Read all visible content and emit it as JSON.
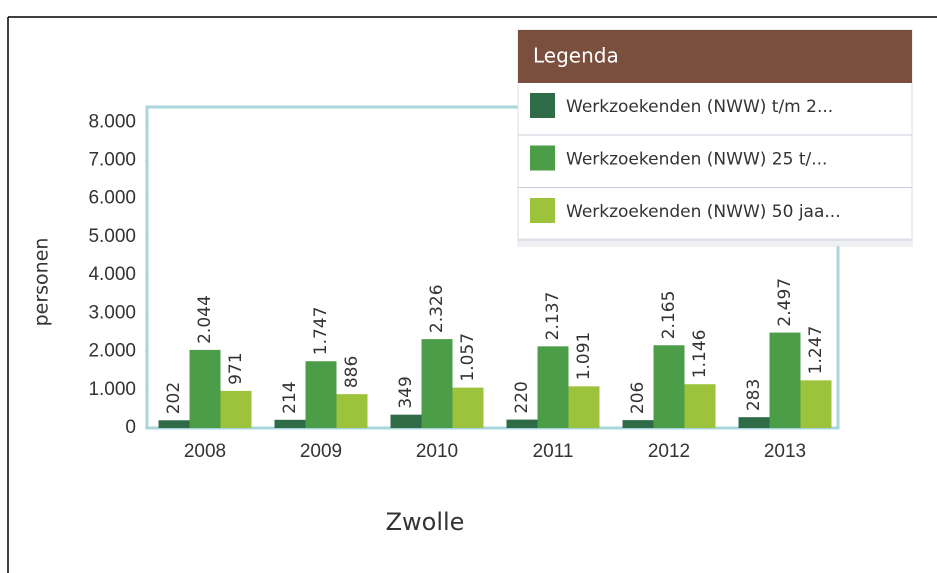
{
  "chart_data": {
    "type": "bar",
    "x_label": "Zwolle",
    "y_label": "personen",
    "legend_title": "Legenda",
    "categories": [
      "2008",
      "2009",
      "2010",
      "2011",
      "2012",
      "2013"
    ],
    "series": [
      {
        "name": "Werkzoekenden (NWW) t/m 2...",
        "color": "#2f6b46",
        "values": [
          202,
          214,
          349,
          220,
          206,
          283
        ],
        "value_labels": [
          "202",
          "214",
          "349",
          "220",
          "206",
          "283"
        ]
      },
      {
        "name": "Werkzoekenden (NWW) 25 t/...",
        "color": "#4c9d48",
        "values": [
          2044,
          1747,
          2326,
          2137,
          2165,
          2497
        ],
        "value_labels": [
          "2.044",
          "1.747",
          "2.326",
          "2.137",
          "2.165",
          "2.497"
        ]
      },
      {
        "name": "Werkzoekenden (NWW) 50 jaa...",
        "color": "#9cc33b",
        "values": [
          971,
          886,
          1057,
          1091,
          1146,
          1247
        ],
        "value_labels": [
          "971",
          "886",
          "1.057",
          "1.091",
          "1.146",
          "1.247"
        ]
      }
    ],
    "ylim": [
      0,
      8400
    ],
    "yticks": [
      0,
      1000,
      {
        "value": 1000,
        "label": "1.000"
      },
      {
        "value": 2000,
        "label": "2.000"
      },
      {
        "value": 3000,
        "label": "3.000"
      },
      {
        "value": 4000,
        "label": "4.000"
      },
      {
        "value": 5000,
        "label": "5.000"
      },
      {
        "value": 6000,
        "label": "6.000"
      },
      {
        "value": 7000,
        "label": "7.000"
      },
      {
        "value": 8000,
        "label": "8.000"
      }
    ],
    "grid": false
  }
}
